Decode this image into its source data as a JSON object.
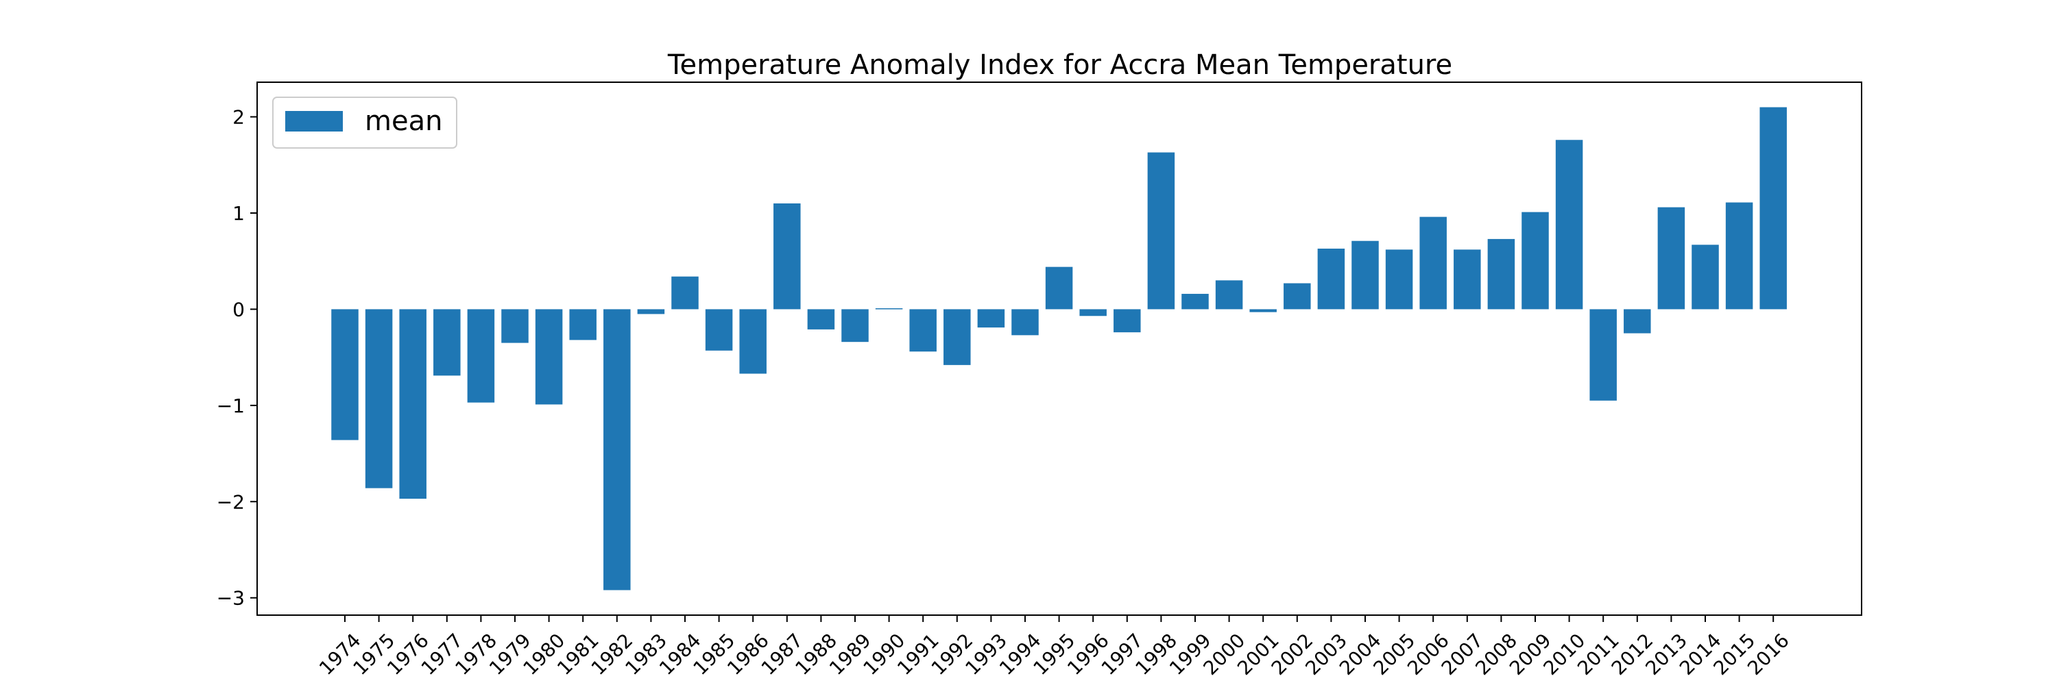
{
  "chart_data": {
    "type": "bar",
    "title": "Temperature Anomaly Index for Accra Mean Temperature",
    "xlabel": "",
    "ylabel": "",
    "ylim": [
      -3.18,
      2.36
    ],
    "yticks": [
      -3,
      -2,
      -1,
      0,
      1,
      2
    ],
    "grid": false,
    "legend_position": "top-left",
    "series": [
      {
        "name": "mean",
        "color": "#1f77b4",
        "values": [
          -1.36,
          -1.86,
          -1.97,
          -0.69,
          -0.97,
          -0.35,
          -0.99,
          -0.32,
          -2.92,
          -0.05,
          0.34,
          -0.43,
          -0.67,
          1.1,
          -0.21,
          -0.34,
          0.01,
          -0.44,
          -0.58,
          -0.19,
          -0.27,
          0.44,
          -0.07,
          -0.24,
          1.63,
          0.16,
          0.3,
          -0.03,
          0.27,
          0.63,
          0.71,
          0.62,
          0.96,
          0.62,
          0.73,
          1.01,
          1.76,
          -0.95,
          -0.25,
          1.06,
          0.67,
          1.11,
          2.1
        ]
      }
    ],
    "categories": [
      "1974",
      "1975",
      "1976",
      "1977",
      "1978",
      "1979",
      "1980",
      "1981",
      "1982",
      "1983",
      "1984",
      "1985",
      "1986",
      "1987",
      "1988",
      "1989",
      "1990",
      "1991",
      "1992",
      "1993",
      "1994",
      "1995",
      "1996",
      "1997",
      "1998",
      "1999",
      "2000",
      "2001",
      "2002",
      "2003",
      "2004",
      "2005",
      "2006",
      "2007",
      "2008",
      "2009",
      "2010",
      "2011",
      "2012",
      "2013",
      "2014",
      "2015",
      "2016"
    ]
  }
}
